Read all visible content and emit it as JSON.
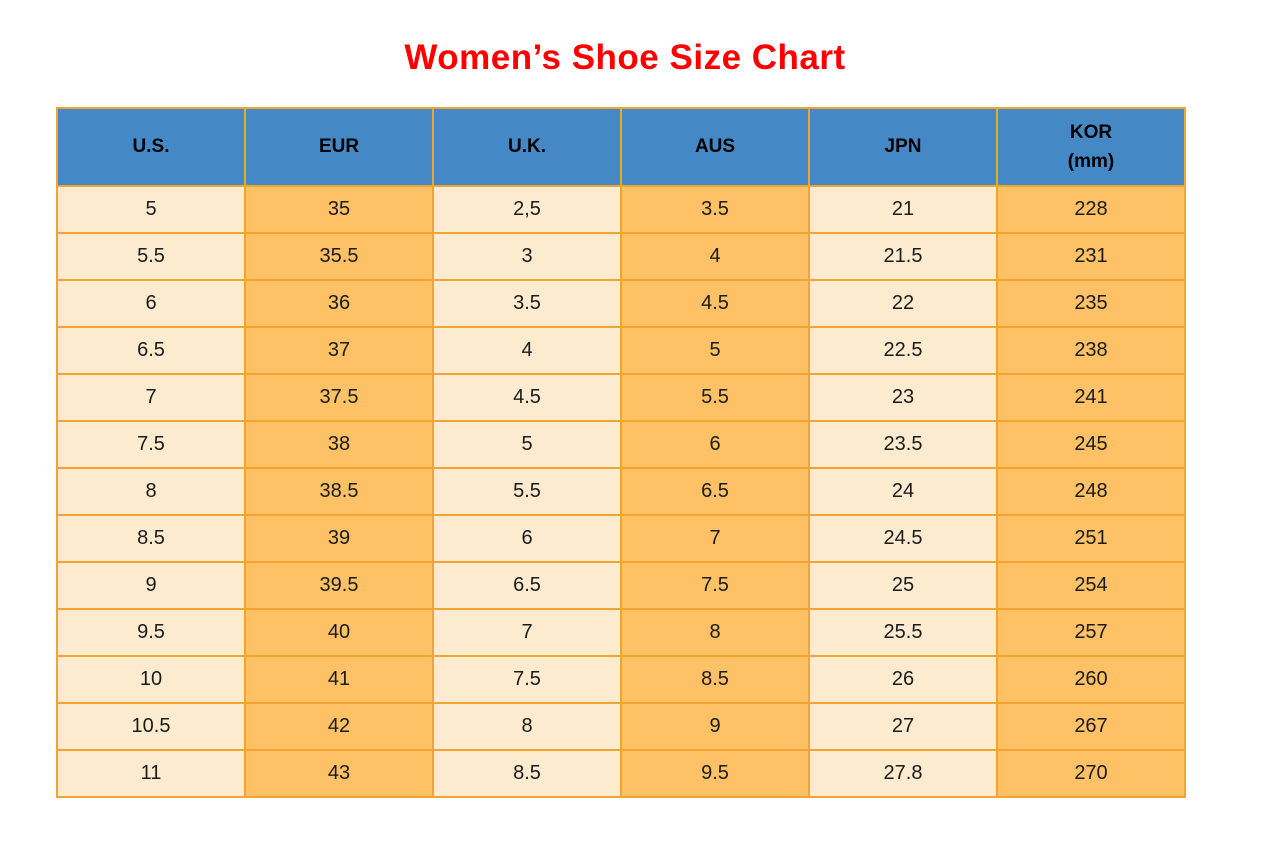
{
  "title": "Women’s Shoe Size Chart",
  "colors": {
    "title_red": "#FF0000",
    "header_blue": "#4489C6",
    "cell_orange": "#FFC165",
    "cell_cream": "#FDEBD0",
    "border_orange": "#F2A430",
    "text_black": "#1B1B1B"
  },
  "chart_data": {
    "type": "table",
    "title": "Women’s Shoe Size Chart",
    "columns": [
      "U.S.",
      "EUR",
      "U.K.",
      "AUS",
      "JPN",
      "KOR\n(mm)"
    ],
    "column_keys": [
      "us",
      "eur",
      "uk",
      "aus",
      "jpn",
      "kor-mm"
    ],
    "column_fill_pattern": [
      "cream",
      "orange",
      "cream",
      "orange",
      "cream",
      "orange"
    ],
    "rows": [
      [
        "5",
        "35",
        "2,5",
        "3.5",
        "21",
        "228"
      ],
      [
        "5.5",
        "35.5",
        "3",
        "4",
        "21.5",
        "231"
      ],
      [
        "6",
        "36",
        "3.5",
        "4.5",
        "22",
        "235"
      ],
      [
        "6.5",
        "37",
        "4",
        "5",
        "22.5",
        "238"
      ],
      [
        "7",
        "37.5",
        "4.5",
        "5.5",
        "23",
        "241"
      ],
      [
        "7.5",
        "38",
        "5",
        "6",
        "23.5",
        "245"
      ],
      [
        "8",
        "38.5",
        "5.5",
        "6.5",
        "24",
        "248"
      ],
      [
        "8.5",
        "39",
        "6",
        "7",
        "24.5",
        "251"
      ],
      [
        "9",
        "39.5",
        "6.5",
        "7.5",
        "25",
        "254"
      ],
      [
        "9.5",
        "40",
        "7",
        "8",
        "25.5",
        "257"
      ],
      [
        "10",
        "41",
        "7.5",
        "8.5",
        "26",
        "260"
      ],
      [
        "10.5",
        "42",
        "8",
        "9",
        "27",
        "267"
      ],
      [
        "11",
        "43",
        "8.5",
        "9.5",
        "27.8",
        "270"
      ]
    ]
  }
}
